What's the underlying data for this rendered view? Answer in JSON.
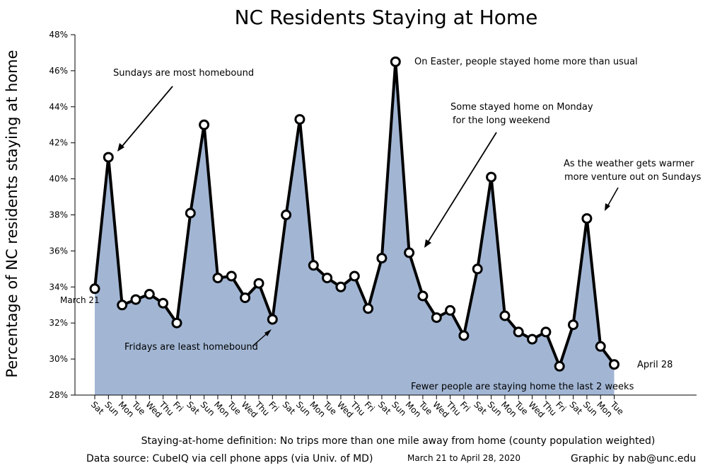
{
  "chart_data": {
    "type": "area",
    "title": "NC Residents Staying at Home",
    "ylabel": "Percentage of NC residents staying at home",
    "ylim": [
      28,
      48
    ],
    "yticks": [
      "28%",
      "30%",
      "32%",
      "34%",
      "36%",
      "38%",
      "40%",
      "42%",
      "44%",
      "46%",
      "48%"
    ],
    "grid": false,
    "categories": [
      "Sat",
      "Sun",
      "Mon",
      "Tue",
      "Wed",
      "Thu",
      "Fri",
      "Sat",
      "Sun",
      "Mon",
      "Tue",
      "Wed",
      "Thu",
      "Fri",
      "Sat",
      "Sun",
      "Mon",
      "Tue",
      "Wed",
      "Thu",
      "Fri",
      "Sat",
      "Sun",
      "Mon",
      "Tue",
      "Wed",
      "Thu",
      "Fri",
      "Sat",
      "Sun",
      "Mon",
      "Tue",
      "Wed",
      "Thu",
      "Fri",
      "Sat",
      "Sun",
      "Mon",
      "Tue"
    ],
    "series": [
      {
        "values": [
          33.9,
          41.2,
          33.0,
          33.3,
          33.6,
          33.1,
          32.0,
          38.1,
          43.0,
          34.5,
          34.6,
          33.4,
          34.2,
          32.2,
          38.0,
          43.3,
          35.2,
          34.5,
          34.0,
          34.6,
          32.8,
          35.6,
          46.5,
          35.9,
          33.5,
          32.3,
          32.7,
          31.3,
          35.0,
          40.1,
          32.4,
          31.5,
          31.1,
          31.5,
          29.6,
          31.9,
          37.8,
          30.7,
          29.7
        ]
      }
    ],
    "annotations": {
      "start": "March 21",
      "end": "April 28",
      "sundays": "Sundays are most homebound",
      "fridays": "Fridays are least homebound",
      "easter": "On Easter, people stayed home more than usual",
      "monday_line1": "Some stayed home on Monday",
      "monday_line2": "for the long weekend",
      "weather_line1": "As the weather gets warmer",
      "weather_line2": "more venture out on Sundays",
      "fewer": "Fewer people are staying home the last 2 weeks"
    },
    "footer": {
      "definition": "Staying-at-home definition: No trips more than one mile away from home (county population weighted)",
      "source": "Data source: CubeIQ via cell phone apps (via Univ. of MD)",
      "range": "March 21  to April 28, 2020",
      "credit": "Graphic by nab@unc.edu"
    },
    "colors": {
      "area": "#a2b6d4",
      "line": "#000000",
      "marker_fill": "#ffffff"
    }
  }
}
